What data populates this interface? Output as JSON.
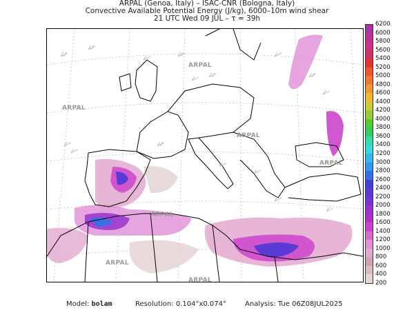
{
  "header": {
    "line1": "ARPAL (Genoa, Italy)  –  ISAC-CNR (Bologna, Italy)",
    "line2": "Convective Available Potential Energy (J/kg), 6000–10m wind shear",
    "line3": "21 UTC Wed 09 JUL  –  τ = 39h"
  },
  "watermark": "ARPAL",
  "colorbar": {
    "levels": [
      "200",
      "400",
      "600",
      "800",
      "1000",
      "1200",
      "1400",
      "1600",
      "1800",
      "2000",
      "2200",
      "2400",
      "2600",
      "2800",
      "3000",
      "3200",
      "3400",
      "3600",
      "3800",
      "4000",
      "4200",
      "4400",
      "4600",
      "4800",
      "5000",
      "5200",
      "5400",
      "5600",
      "5800",
      "6000",
      "6200"
    ],
    "colors": [
      "#ffffff",
      "#e6d6d6",
      "#d9bcbc",
      "#cfa3b3",
      "#e3a8cf",
      "#e08fd6",
      "#d96ad0",
      "#cc44cc",
      "#b033c6",
      "#9933cc",
      "#7a33cc",
      "#5c3ad6",
      "#4040e0",
      "#3a6ee6",
      "#3399ee",
      "#33bbee",
      "#33dddd",
      "#33ddaa",
      "#33cc66",
      "#55cc33",
      "#99cc33",
      "#cccc33",
      "#eebb33",
      "#ee9933",
      "#ee7733",
      "#ee5533",
      "#e63333",
      "#cc3366",
      "#cc3388",
      "#bb3399",
      "#aa33aa"
    ]
  },
  "footer": {
    "model_label": "Model:",
    "model_value": "bolam",
    "resolution_label": "Resolution:",
    "resolution_value": "0.104°x0.074°",
    "analysis_label": "Analysis:",
    "analysis_value": "Tue 06Z08JUL2025"
  }
}
